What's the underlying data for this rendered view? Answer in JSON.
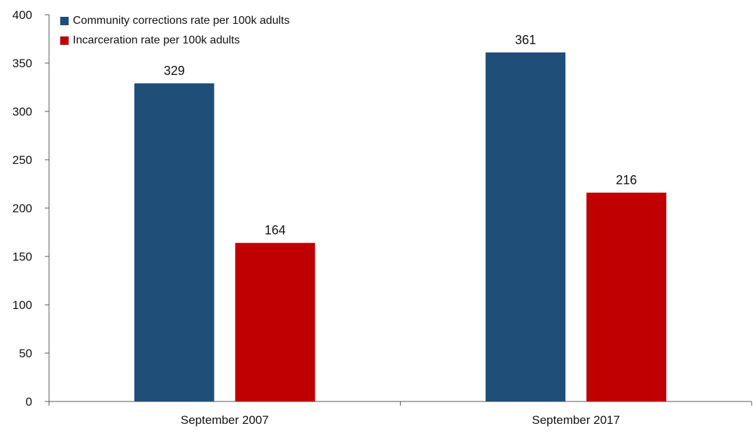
{
  "chart_data": {
    "type": "bar",
    "categories": [
      "September 2007",
      "September 2017"
    ],
    "series": [
      {
        "name": "Community corrections rate per 100k adults",
        "values": [
          329,
          361
        ],
        "color": "#1f4e79"
      },
      {
        "name": "Incarceration rate per 100k adults",
        "values": [
          164,
          216
        ],
        "color": "#c00000"
      }
    ],
    "data_labels": [
      [
        "329",
        "361"
      ],
      [
        "164",
        "216"
      ]
    ],
    "y_ticks": [
      0,
      50,
      100,
      150,
      200,
      250,
      300,
      350,
      400
    ],
    "ylim": [
      0,
      400
    ],
    "title": "",
    "xlabel": "",
    "ylabel": "",
    "legend_position": "top-left",
    "grid": false
  }
}
